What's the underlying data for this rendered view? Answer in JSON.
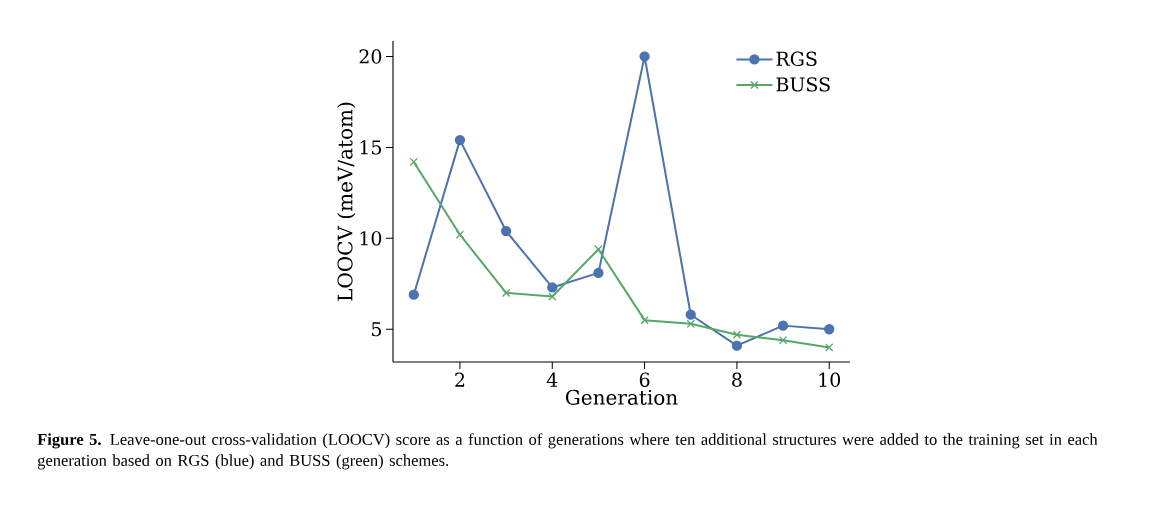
{
  "chart_data": {
    "type": "line",
    "xlabel": "Generation",
    "ylabel": "LOOCV (meV/atom)",
    "x": [
      1,
      2,
      3,
      4,
      5,
      6,
      7,
      8,
      9,
      10
    ],
    "series": [
      {
        "name": "RGS",
        "color": "#4c72b0",
        "marker": "circle",
        "values": [
          6.9,
          15.4,
          10.4,
          7.3,
          8.1,
          20.0,
          5.8,
          4.1,
          5.2,
          5.0
        ]
      },
      {
        "name": "BUSS",
        "color": "#55a868",
        "marker": "cross",
        "values": [
          14.2,
          10.2,
          7.0,
          6.8,
          9.4,
          5.5,
          5.3,
          4.7,
          4.4,
          4.0
        ]
      }
    ],
    "xlim": [
      0.55,
      10.45
    ],
    "ylim": [
      3.2,
      20.85
    ],
    "xticks": [
      2,
      4,
      6,
      8,
      10
    ],
    "yticks": [
      5,
      10,
      15,
      20
    ],
    "line_style": "solid",
    "grid": false,
    "legend": "top right",
    "annotations": [
      "**Figure 5.** Leave-one-out cross-validation (LOOCV) score as a function of generations where ten additional structures were added to the training set in each generation based on RGS (blue) and BUSS (green) schemes."
    ]
  }
}
